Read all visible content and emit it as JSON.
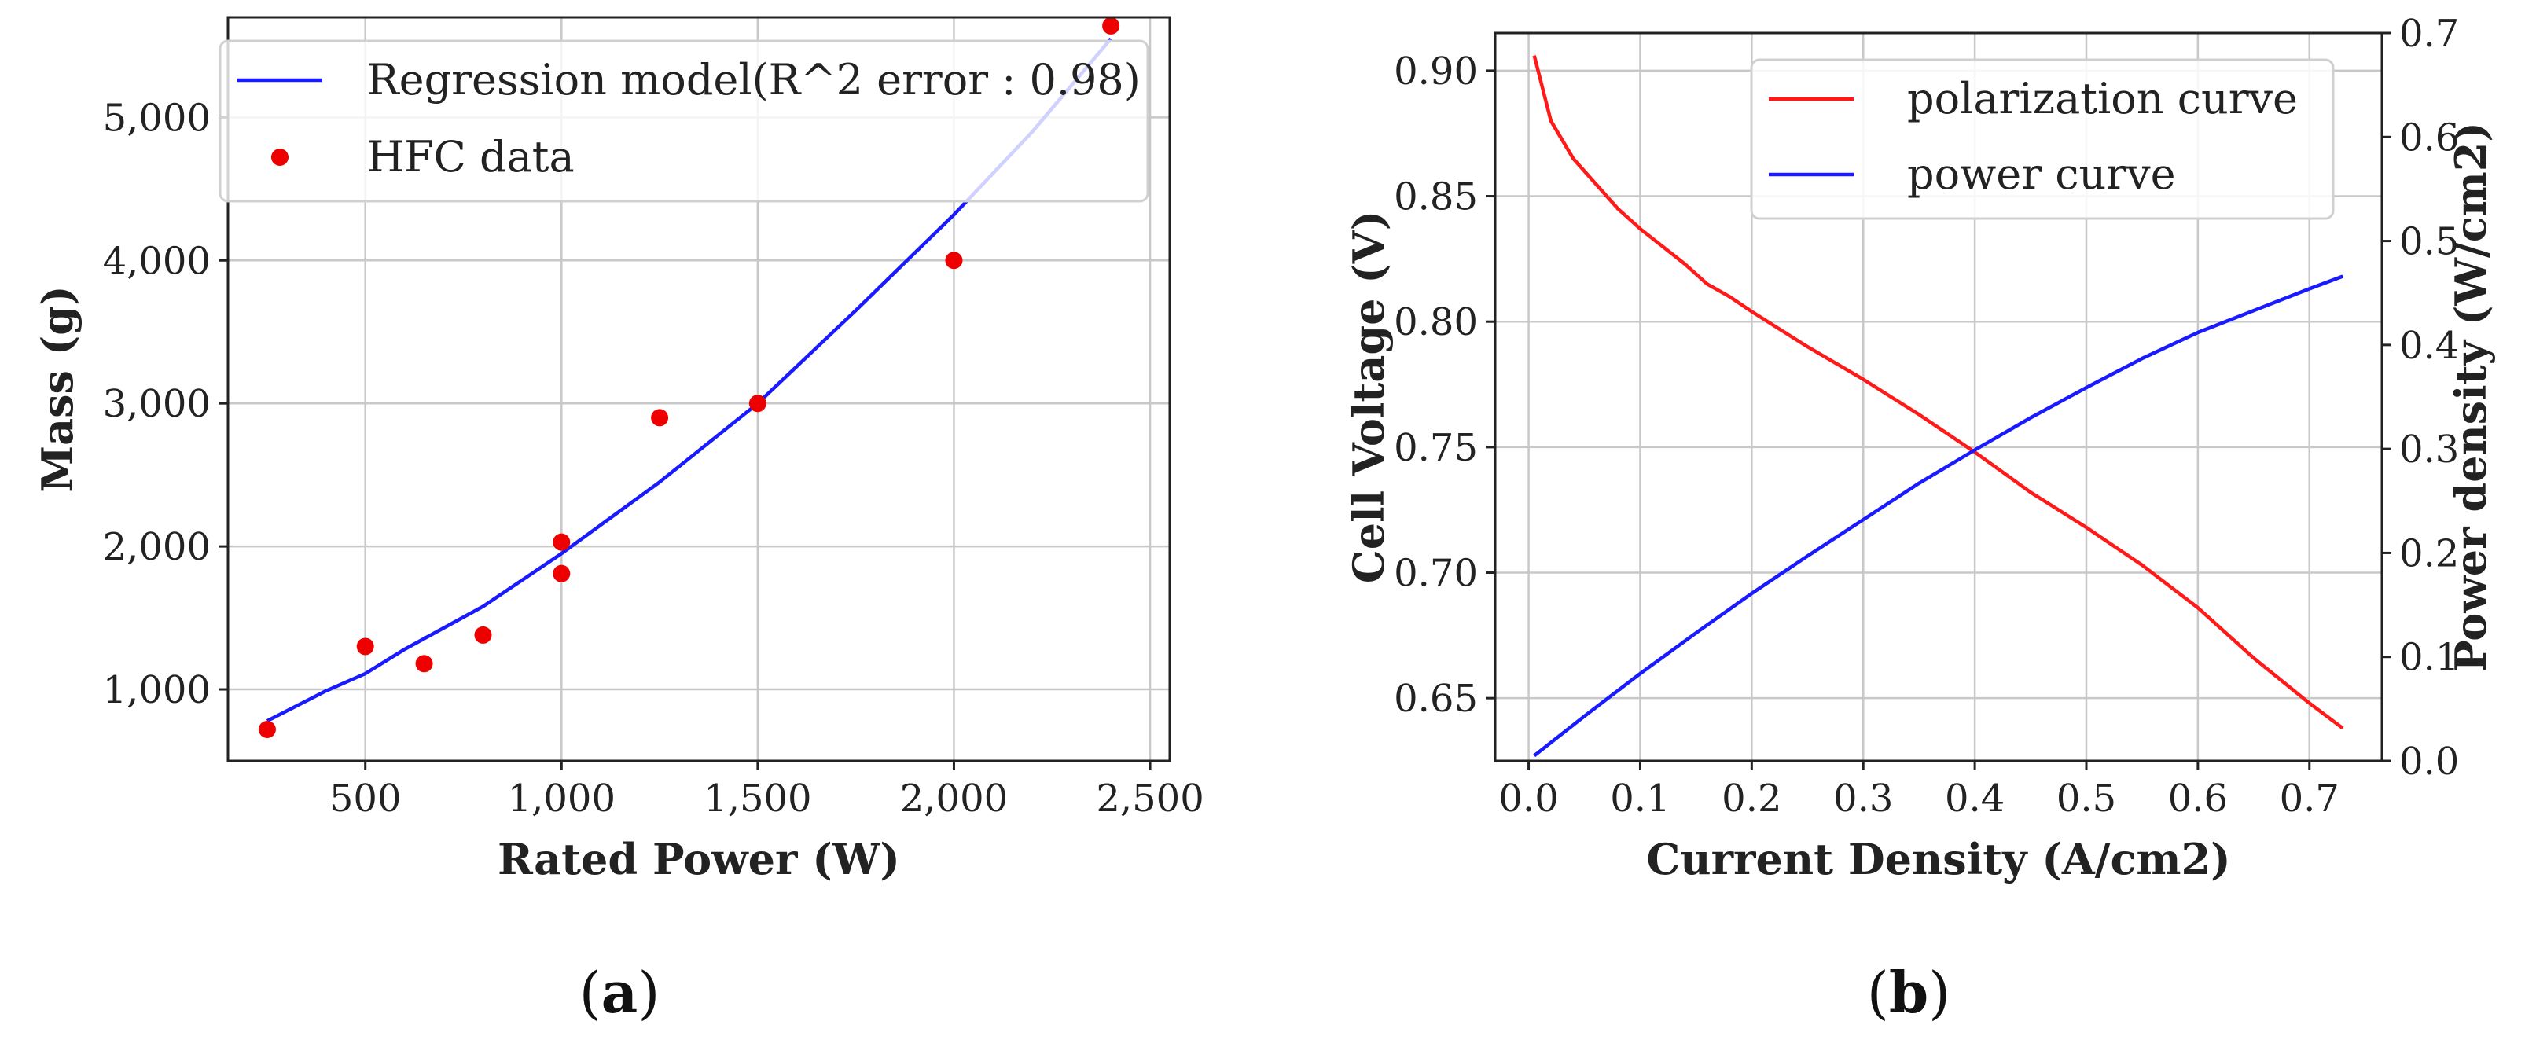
{
  "chart_data": [
    {
      "type": "scatter",
      "title": "",
      "xlabel": "Rated Power (W)",
      "ylabel": "Mass (g)",
      "xlim": [
        150,
        2550
      ],
      "ylim": [
        500,
        5700
      ],
      "grid": true,
      "legend_placement": "top-left",
      "x_ticks": [
        500,
        1000,
        1500,
        2000,
        2500
      ],
      "x_tick_labels": [
        "500",
        "1,000",
        "1,500",
        "2,000",
        "2,500"
      ],
      "y_ticks": [
        1000,
        2000,
        3000,
        4000,
        5000
      ],
      "y_tick_labels": [
        "1,000",
        "2,000",
        "3,000",
        "4,000",
        "5,000"
      ],
      "series": [
        {
          "name": "Regression model(R^2 error : 0.98)",
          "kind": "line",
          "color": "#1a1aff",
          "x": [
            250,
            400,
            500,
            600,
            800,
            1000,
            1250,
            1500,
            1750,
            2000,
            2200,
            2400
          ],
          "y": [
            780,
            990,
            1110,
            1280,
            1580,
            1950,
            2450,
            3000,
            3650,
            4320,
            4900,
            5550
          ]
        },
        {
          "name": "HFC data",
          "kind": "scatter",
          "color": "#ee0000",
          "x": [
            250,
            500,
            650,
            800,
            1000,
            1000,
            1250,
            1500,
            2000,
            2400
          ],
          "y": [
            720,
            1300,
            1180,
            1380,
            2030,
            1810,
            2900,
            3000,
            4000,
            5640
          ]
        }
      ],
      "caption": "(a)"
    },
    {
      "type": "line",
      "title": "",
      "xlabel": "Current Density (A/cm2)",
      "ylabel": "Cell Voltage (V)",
      "y2label": "Power density (W/cm2)",
      "xlim": [
        -0.03,
        0.765
      ],
      "ylim": [
        0.625,
        0.915
      ],
      "y2lim": [
        0.0,
        0.7
      ],
      "grid": true,
      "legend_placement": "top-right",
      "x_ticks": [
        0.0,
        0.1,
        0.2,
        0.3,
        0.4,
        0.5,
        0.6,
        0.7
      ],
      "x_tick_labels": [
        "0.0",
        "0.1",
        "0.2",
        "0.3",
        "0.4",
        "0.5",
        "0.6",
        "0.7"
      ],
      "y_ticks": [
        0.65,
        0.7,
        0.75,
        0.8,
        0.85,
        0.9
      ],
      "y_tick_labels": [
        "0.65",
        "0.70",
        "0.75",
        "0.80",
        "0.85",
        "0.90"
      ],
      "y2_ticks": [
        0.0,
        0.1,
        0.2,
        0.3,
        0.4,
        0.5,
        0.6,
        0.7
      ],
      "y2_tick_labels": [
        "0.0",
        "0.1",
        "0.2",
        "0.3",
        "0.4",
        "0.5",
        "0.6",
        "0.7"
      ],
      "series": [
        {
          "name": "polarization curve",
          "axis": "left",
          "color": "#ff1a1a",
          "x": [
            0.005,
            0.02,
            0.04,
            0.06,
            0.08,
            0.1,
            0.12,
            0.14,
            0.16,
            0.18,
            0.2,
            0.25,
            0.3,
            0.35,
            0.4,
            0.45,
            0.5,
            0.55,
            0.6,
            0.65,
            0.7,
            0.73
          ],
          "y": [
            0.906,
            0.88,
            0.865,
            0.855,
            0.845,
            0.837,
            0.83,
            0.823,
            0.815,
            0.81,
            0.804,
            0.79,
            0.777,
            0.763,
            0.748,
            0.732,
            0.718,
            0.703,
            0.686,
            0.666,
            0.648,
            0.638
          ]
        },
        {
          "name": "power curve",
          "axis": "right",
          "color": "#1a1aff",
          "x": [
            0.005,
            0.05,
            0.1,
            0.15,
            0.2,
            0.25,
            0.3,
            0.35,
            0.4,
            0.45,
            0.5,
            0.55,
            0.6,
            0.65,
            0.7,
            0.73
          ],
          "y": [
            0.005,
            0.043,
            0.084,
            0.123,
            0.161,
            0.197,
            0.232,
            0.267,
            0.299,
            0.33,
            0.359,
            0.387,
            0.412,
            0.433,
            0.454,
            0.466
          ]
        }
      ],
      "caption": "(b)"
    }
  ]
}
